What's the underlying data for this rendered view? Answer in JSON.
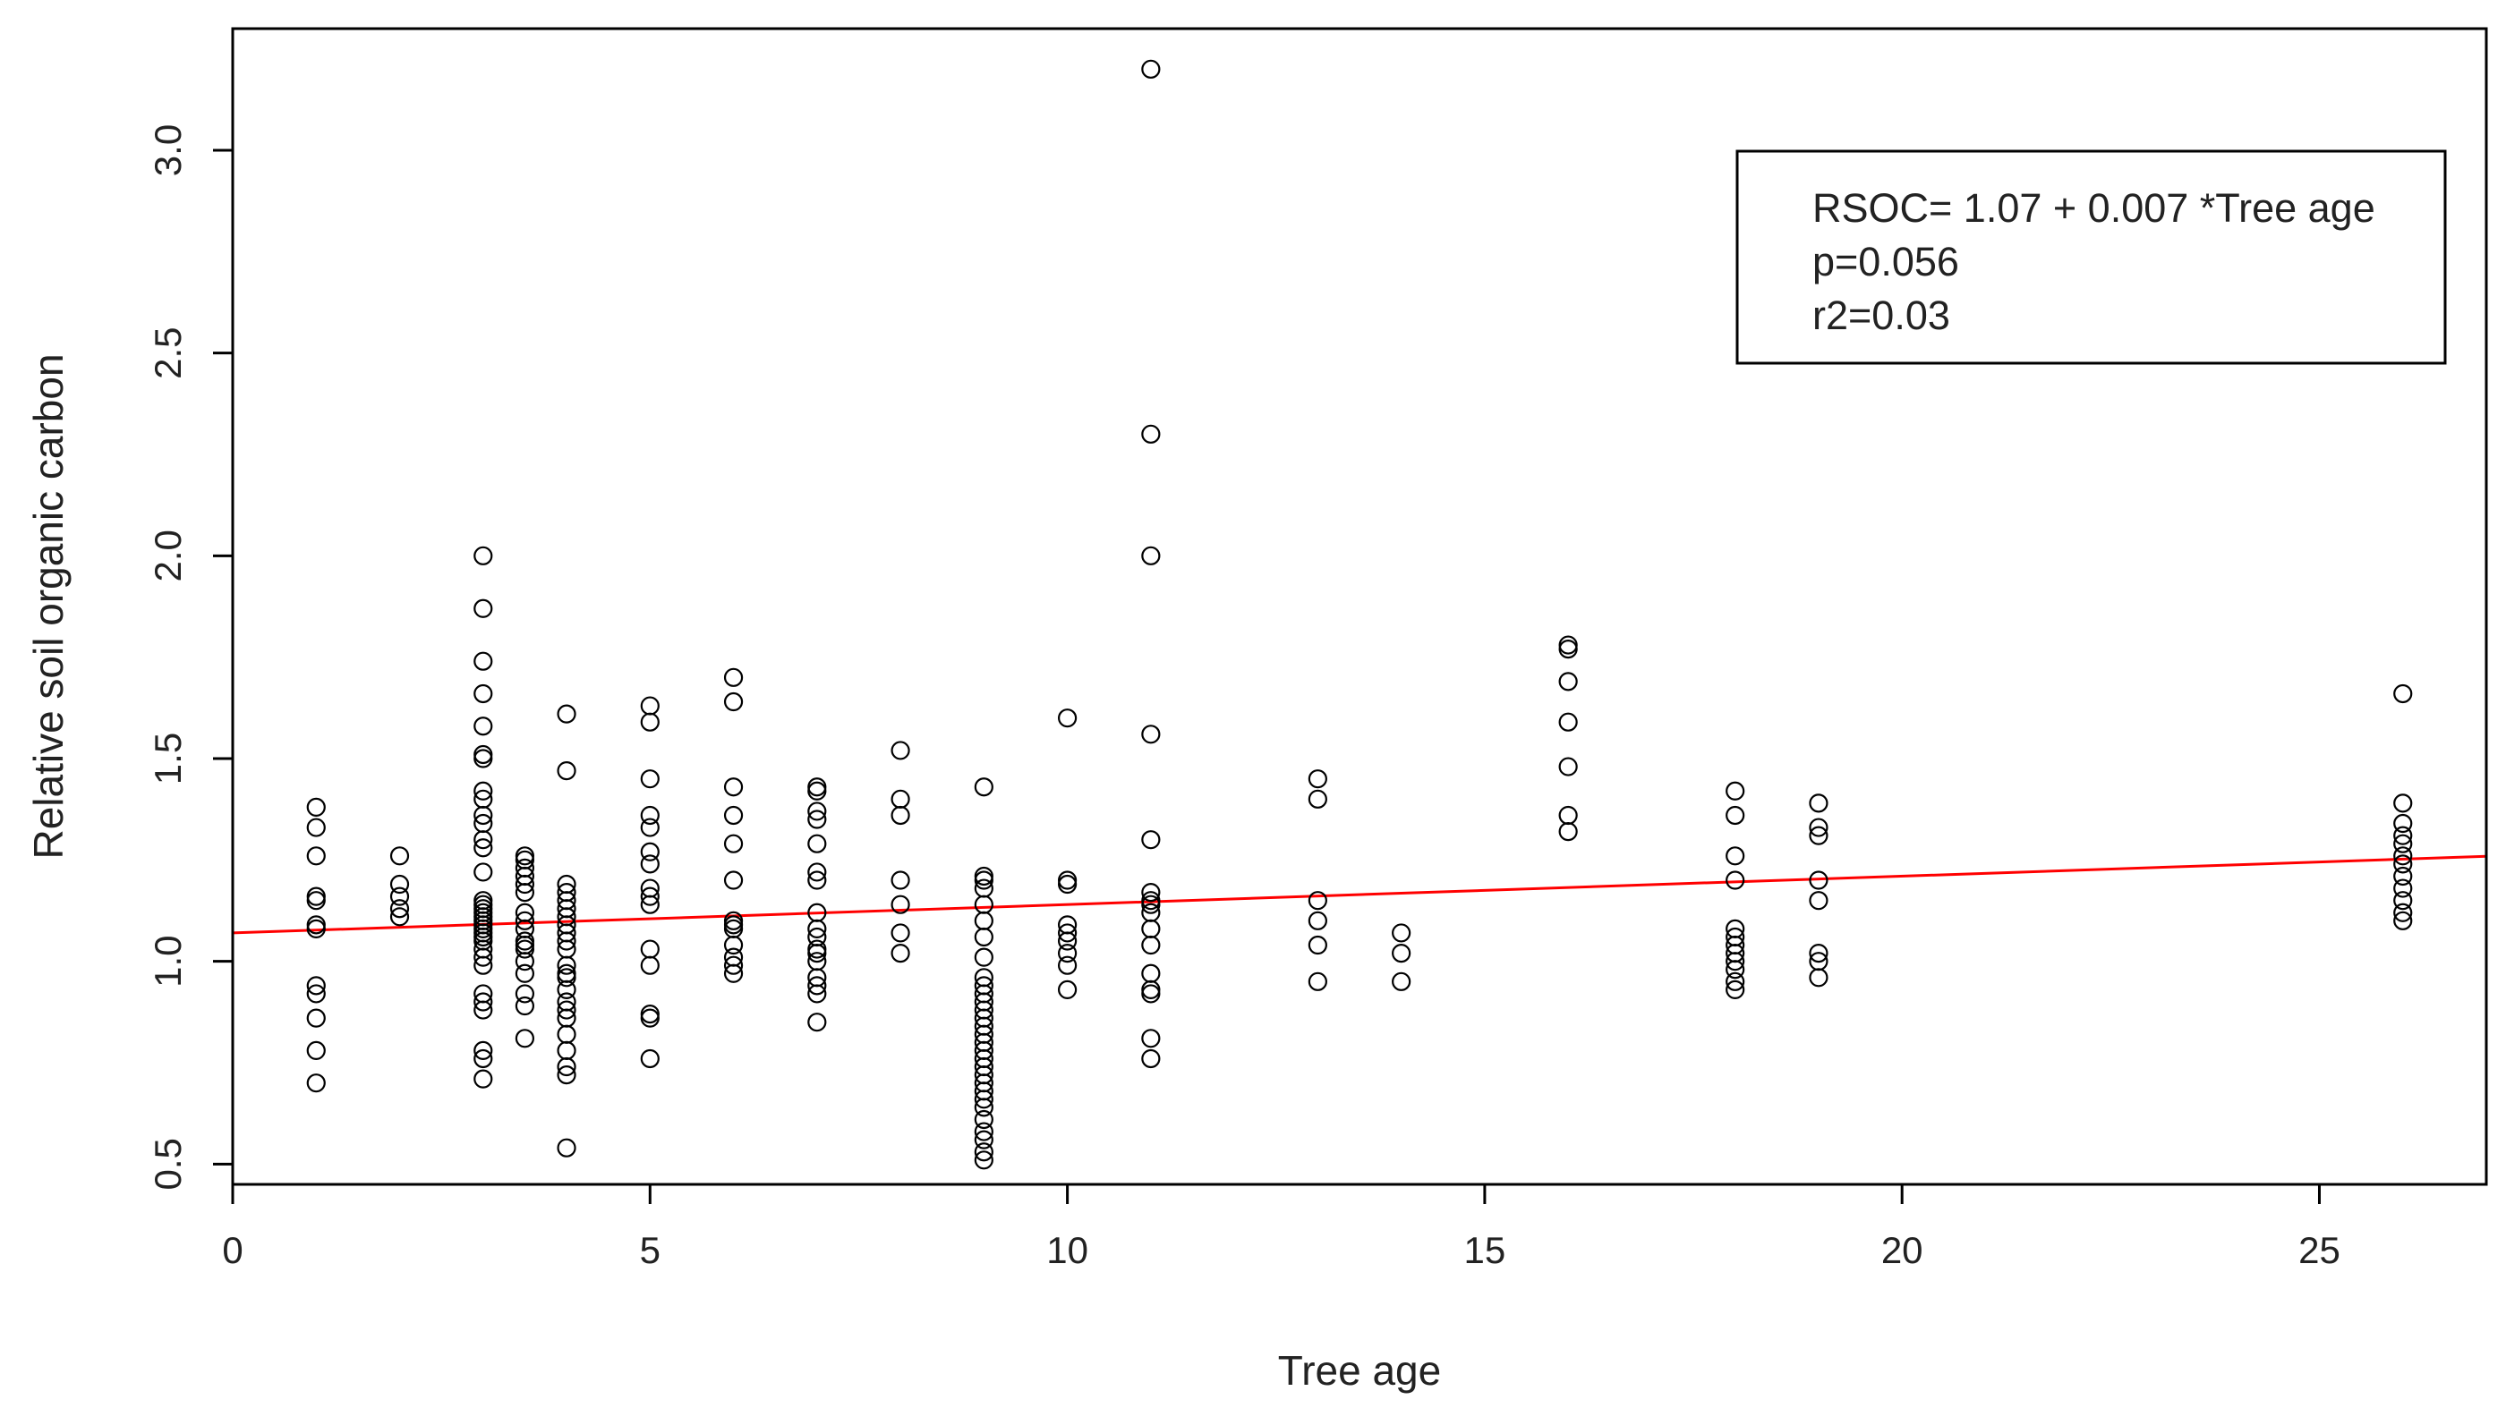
{
  "chart_data": {
    "type": "scatter",
    "title": "",
    "xlabel": "Tree age",
    "ylabel": "Relative soil organic carbon",
    "xlim": [
      0,
      27
    ],
    "ylim": [
      0.45,
      3.3
    ],
    "xticks": [
      0,
      5,
      10,
      15,
      20,
      25
    ],
    "yticks": [
      0.5,
      1.0,
      1.5,
      2.0,
      2.5,
      3.0
    ],
    "xtick_labels": [
      "0",
      "5",
      "10",
      "15",
      "20",
      "25"
    ],
    "ytick_labels": [
      "0.5",
      "1.0",
      "1.5",
      "2.0",
      "2.5",
      "3.0"
    ],
    "grid": false,
    "legend_position": "top-right",
    "annotation": [
      "RSOC= 1.07 + 0.007 *Tree age",
      "p=0.056",
      "r2=0.03"
    ],
    "regression": {
      "intercept": 1.07,
      "slope": 0.007,
      "color": "#ff0000"
    },
    "marker_color": "#000000",
    "series": [
      {
        "x": 1,
        "y": [
          0.7,
          0.78,
          0.86,
          0.92,
          0.94,
          1.08,
          1.09,
          1.15,
          1.16,
          1.26,
          1.33,
          1.38
        ]
      },
      {
        "x": 2,
        "y": [
          1.11,
          1.13,
          1.16,
          1.19,
          1.26
        ]
      },
      {
        "x": 3,
        "y": [
          0.71,
          0.76,
          0.78,
          0.88,
          0.9,
          0.92,
          0.99,
          1.01,
          1.03,
          1.05,
          1.06,
          1.07,
          1.08,
          1.09,
          1.1,
          1.11,
          1.12,
          1.13,
          1.14,
          1.15,
          1.22,
          1.28,
          1.3,
          1.34,
          1.36,
          1.4,
          1.42,
          1.5,
          1.51,
          1.58,
          1.66,
          1.74,
          1.87,
          2.0
        ]
      },
      {
        "x": 3.5,
        "y": [
          0.81,
          0.89,
          0.92,
          0.97,
          1.0,
          1.03,
          1.04,
          1.05,
          1.08,
          1.1,
          1.12,
          1.17,
          1.19,
          1.21,
          1.23,
          1.25,
          1.26
        ]
      },
      {
        "x": 4,
        "y": [
          0.54,
          0.72,
          0.74,
          0.78,
          0.82,
          0.86,
          0.88,
          0.9,
          0.93,
          0.96,
          0.97,
          0.99,
          1.03,
          1.05,
          1.07,
          1.09,
          1.11,
          1.13,
          1.15,
          1.17,
          1.19,
          1.47,
          1.61
        ]
      },
      {
        "x": 5,
        "y": [
          0.76,
          0.86,
          0.87,
          0.99,
          1.03,
          1.14,
          1.16,
          1.18,
          1.24,
          1.27,
          1.33,
          1.36,
          1.45,
          1.59,
          1.63
        ]
      },
      {
        "x": 6,
        "y": [
          0.97,
          0.99,
          1.01,
          1.04,
          1.08,
          1.09,
          1.1,
          1.2,
          1.29,
          1.36,
          1.43,
          1.64,
          1.7
        ]
      },
      {
        "x": 7,
        "y": [
          0.85,
          0.92,
          0.94,
          0.96,
          1.0,
          1.02,
          1.03,
          1.06,
          1.08,
          1.12,
          1.2,
          1.22,
          1.29,
          1.35,
          1.37,
          1.42,
          1.43
        ]
      },
      {
        "x": 8,
        "y": [
          1.02,
          1.07,
          1.14,
          1.2,
          1.36,
          1.4,
          1.52
        ]
      },
      {
        "x": 9,
        "y": [
          0.51,
          0.53,
          0.56,
          0.58,
          0.61,
          0.64,
          0.66,
          0.68,
          0.7,
          0.72,
          0.74,
          0.76,
          0.78,
          0.8,
          0.82,
          0.84,
          0.86,
          0.88,
          0.9,
          0.92,
          0.94,
          0.96,
          1.01,
          1.06,
          1.1,
          1.14,
          1.18,
          1.2,
          1.21,
          1.43
        ]
      },
      {
        "x": 10,
        "y": [
          0.93,
          0.99,
          1.02,
          1.05,
          1.07,
          1.09,
          1.19,
          1.2,
          1.6
        ]
      },
      {
        "x": 11,
        "y": [
          0.76,
          0.81,
          0.92,
          0.93,
          0.97,
          1.04,
          1.08,
          1.12,
          1.14,
          1.15,
          1.17,
          1.3,
          1.56,
          2.0,
          2.3,
          3.2
        ]
      },
      {
        "x": 13,
        "y": [
          0.95,
          1.04,
          1.1,
          1.15,
          1.4,
          1.45
        ]
      },
      {
        "x": 14,
        "y": [
          0.95,
          1.02,
          1.07
        ]
      },
      {
        "x": 16,
        "y": [
          1.32,
          1.36,
          1.48,
          1.59,
          1.69,
          1.77,
          1.78
        ]
      },
      {
        "x": 18,
        "y": [
          0.93,
          0.95,
          0.98,
          1.0,
          1.02,
          1.04,
          1.06,
          1.08,
          1.2,
          1.26,
          1.36,
          1.42
        ]
      },
      {
        "x": 19,
        "y": [
          0.96,
          1.0,
          1.02,
          1.15,
          1.2,
          1.31,
          1.33,
          1.39
        ]
      },
      {
        "x": 26,
        "y": [
          1.1,
          1.12,
          1.15,
          1.18,
          1.21,
          1.24,
          1.26,
          1.29,
          1.31,
          1.34,
          1.39,
          1.66
        ]
      }
    ]
  }
}
